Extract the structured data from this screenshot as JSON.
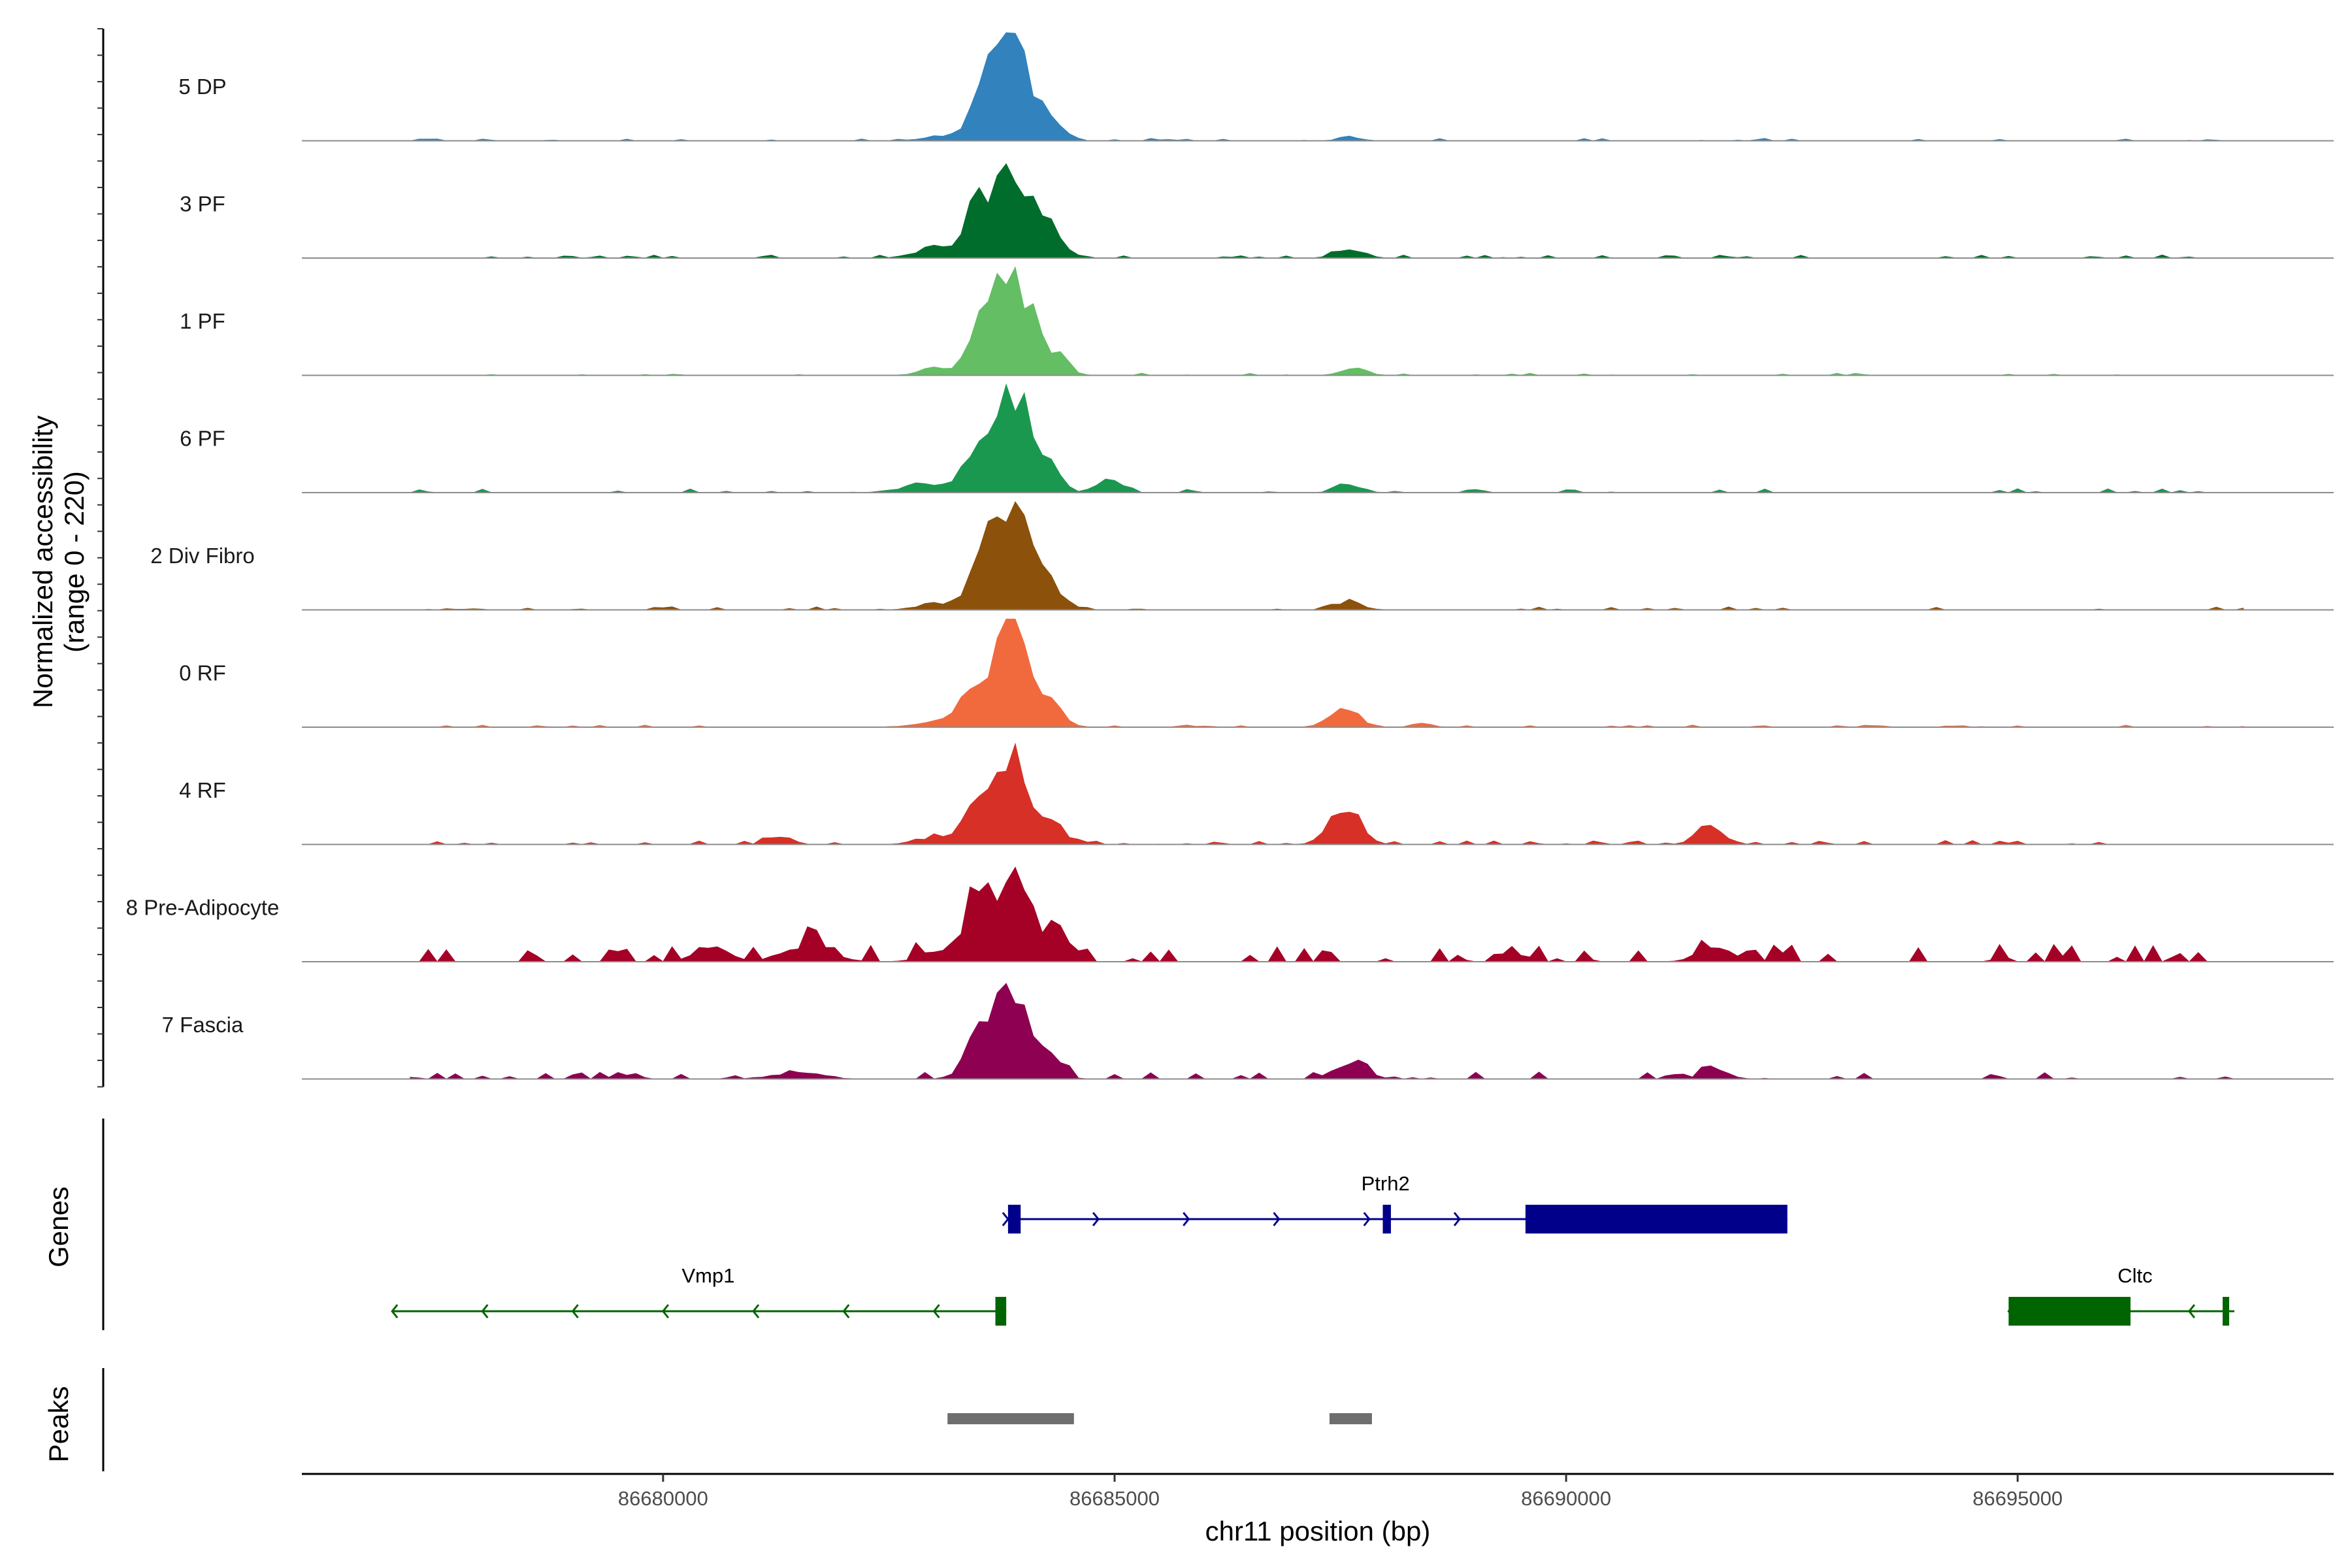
{
  "chart_data": {
    "type": "area",
    "title": "",
    "chromosome": "chr11",
    "xlabel": "chr11 position (bp)",
    "ylabel_line1": "Normalized accessibility",
    "ylabel_line2": "(range 0 - 220)",
    "y_range": [
      0,
      220
    ],
    "xlim": [
      86676000,
      86698500
    ],
    "x_ticks": [
      86680000,
      86685000,
      86690000,
      86695000
    ],
    "x_tick_labels": [
      "86680000",
      "86685000",
      "86690000",
      "86695000"
    ],
    "bin_size": 100,
    "series": [
      {
        "name": "5 DP",
        "color": "#3182BD",
        "noise_seed": 11,
        "noise_level": 3,
        "noise_density": 0.22,
        "peaks": [
          [
            86683850,
            200,
            230
          ],
          [
            86683550,
            60,
            140
          ],
          [
            86684350,
            30,
            120
          ],
          [
            86683100,
            10,
            200
          ],
          [
            86687600,
            8,
            120
          ]
        ]
      },
      {
        "name": "3 PF",
        "color": "#006D2C",
        "noise_seed": 23,
        "noise_level": 4,
        "noise_density": 0.22,
        "peaks": [
          [
            86683850,
            200,
            230
          ],
          [
            86683450,
            70,
            120
          ],
          [
            86684350,
            40,
            120
          ],
          [
            86683000,
            22,
            200
          ],
          [
            86687600,
            22,
            140
          ]
        ]
      },
      {
        "name": "1 PF",
        "color": "#63BE64",
        "noise_seed": 37,
        "noise_level": 3,
        "noise_density": 0.22,
        "peaks": [
          [
            86683850,
            215,
            230
          ],
          [
            86683500,
            55,
            120
          ],
          [
            86684350,
            30,
            130
          ],
          [
            86683050,
            14,
            180
          ],
          [
            86687650,
            18,
            130
          ]
        ]
      },
      {
        "name": "6 PF",
        "color": "#1A9850",
        "noise_seed": 41,
        "noise_level": 5,
        "noise_density": 0.25,
        "peaks": [
          [
            86683850,
            200,
            230
          ],
          [
            86683450,
            60,
            130
          ],
          [
            86684300,
            40,
            120
          ],
          [
            86682900,
            18,
            250
          ],
          [
            86684950,
            30,
            120
          ],
          [
            86687600,
            18,
            130
          ]
        ]
      },
      {
        "name": "2 Div Fibro",
        "color": "#8C510A",
        "noise_seed": 53,
        "noise_level": 4,
        "noise_density": 0.22,
        "peaks": [
          [
            86683850,
            210,
            220
          ],
          [
            86683500,
            60,
            120
          ],
          [
            86684350,
            30,
            120
          ],
          [
            86683050,
            15,
            200
          ],
          [
            86687600,
            16,
            140
          ]
        ]
      },
      {
        "name": "0 RF",
        "color": "#F16A3E",
        "noise_seed": 67,
        "noise_level": 3,
        "noise_density": 0.2,
        "peaks": [
          [
            86683850,
            200,
            230
          ],
          [
            86683400,
            70,
            120
          ],
          [
            86684350,
            30,
            120
          ],
          [
            86683000,
            12,
            200
          ],
          [
            86687550,
            35,
            160
          ],
          [
            86688400,
            8,
            100
          ]
        ]
      },
      {
        "name": "4 RF",
        "color": "#D73027",
        "noise_seed": 79,
        "noise_level": 5,
        "noise_density": 0.25,
        "peaks": [
          [
            86683850,
            170,
            230
          ],
          [
            86683450,
            60,
            130
          ],
          [
            86684350,
            25,
            130
          ],
          [
            86687550,
            80,
            160
          ],
          [
            86691600,
            45,
            140
          ],
          [
            86681300,
            18,
            120
          ],
          [
            86683000,
            15,
            200
          ]
        ]
      },
      {
        "name": "8 Pre-Adipocyte",
        "color": "#A50026",
        "noise_seed": 89,
        "noise_level": 22,
        "noise_density": 0.32,
        "peaks": [
          [
            86683850,
            180,
            220
          ],
          [
            86683450,
            80,
            140
          ],
          [
            86684400,
            40,
            130
          ],
          [
            86681600,
            35,
            250
          ],
          [
            86680550,
            30,
            180
          ],
          [
            86691650,
            30,
            180
          ],
          [
            86689400,
            25,
            100
          ],
          [
            86683050,
            25,
            180
          ]
        ]
      },
      {
        "name": "7 Fascia",
        "color": "#8E0152",
        "noise_seed": 97,
        "noise_level": 9,
        "noise_density": 0.3,
        "peaks": [
          [
            86683850,
            170,
            230
          ],
          [
            86683450,
            50,
            130
          ],
          [
            86684300,
            35,
            120
          ],
          [
            86687600,
            25,
            180
          ],
          [
            86691650,
            18,
            140
          ],
          [
            86681500,
            12,
            250
          ]
        ]
      }
    ],
    "genes": [
      {
        "name": "Ptrh2",
        "strand": "+",
        "color": "#00008B",
        "start": 86683820,
        "end": 86692450,
        "exons": [
          [
            86683820,
            86683960
          ],
          [
            86687970,
            86688060
          ],
          [
            86689550,
            86692450
          ]
        ],
        "label_pos": 86688000,
        "row": 0
      },
      {
        "name": "Vmp1",
        "strand": "-",
        "color": "#006400",
        "start": 86677000,
        "end": 86683800,
        "exons": [
          [
            86683680,
            86683800
          ]
        ],
        "label_pos": 86680500,
        "row": 1
      },
      {
        "name": "Cltc",
        "strand": "-",
        "color": "#006400",
        "start": 86694900,
        "end": 86697400,
        "exons": [
          [
            86694900,
            86696250
          ],
          [
            86697270,
            86697330
          ]
        ],
        "label_pos": 86696300,
        "row": 1
      }
    ],
    "peaks_track": [
      {
        "start": 86683150,
        "end": 86684550
      },
      {
        "start": 86687380,
        "end": 86687850
      }
    ],
    "gene_track_label": "Genes",
    "peak_track_label": "Peaks"
  }
}
